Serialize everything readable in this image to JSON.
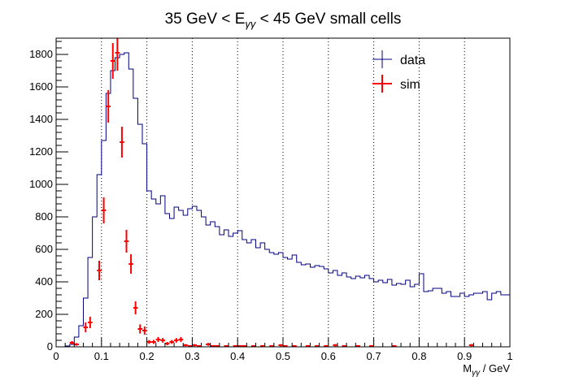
{
  "chart_data": {
    "type": "histogram",
    "title": {
      "prefix": "35 GeV < E",
      "sub": "γγ",
      "suffix": " < 45 GeV small cells"
    },
    "xlabel": {
      "main": "M",
      "sub": "γγ",
      "suffix": " / GeV"
    },
    "ylabel": "",
    "xlim": [
      0,
      1
    ],
    "ylim": [
      0,
      1900
    ],
    "x_ticks": [
      0,
      0.1,
      0.2,
      0.3,
      0.4,
      0.5,
      0.6,
      0.7,
      0.8,
      0.9,
      1
    ],
    "x_tick_labels": [
      "0",
      "0.1",
      "0.2",
      "0.3",
      "0.4",
      "0.5",
      "0.6",
      "0.7",
      "0.8",
      "0.9",
      "1"
    ],
    "y_ticks": [
      0,
      200,
      400,
      600,
      800,
      1000,
      1200,
      1400,
      1600,
      1800
    ],
    "y_tick_labels": [
      "0",
      "200",
      "400",
      "600",
      "800",
      "1000",
      "1200",
      "1400",
      "1600",
      "1800"
    ],
    "vertical_grid": true,
    "horizontal_grid": false,
    "legend_position": "top-right",
    "legend": [
      {
        "label": "data",
        "color": "#000080",
        "style": "line"
      },
      {
        "label": "sim",
        "color": "#ff0000",
        "style": "cross"
      }
    ],
    "series": [
      {
        "name": "data",
        "style": "step",
        "color": "#000080",
        "bin_edges": [
          0,
          0.01,
          0.02,
          0.03,
          0.04,
          0.05,
          0.06,
          0.07,
          0.08,
          0.09,
          0.1,
          0.11,
          0.12,
          0.13,
          0.14,
          0.15,
          0.16,
          0.17,
          0.18,
          0.19,
          0.2,
          0.21,
          0.22,
          0.23,
          0.24,
          0.25,
          0.26,
          0.27,
          0.28,
          0.29,
          0.3,
          0.31,
          0.32,
          0.33,
          0.34,
          0.35,
          0.36,
          0.37,
          0.38,
          0.39,
          0.4,
          0.41,
          0.42,
          0.43,
          0.44,
          0.45,
          0.46,
          0.47,
          0.48,
          0.49,
          0.5,
          0.51,
          0.52,
          0.53,
          0.54,
          0.55,
          0.56,
          0.57,
          0.58,
          0.59,
          0.6,
          0.61,
          0.62,
          0.63,
          0.64,
          0.65,
          0.66,
          0.67,
          0.68,
          0.69,
          0.7,
          0.71,
          0.72,
          0.73,
          0.74,
          0.75,
          0.76,
          0.77,
          0.78,
          0.79,
          0.8,
          0.81,
          0.82,
          0.83,
          0.84,
          0.85,
          0.86,
          0.87,
          0.88,
          0.89,
          0.9,
          0.91,
          0.92,
          0.93,
          0.94,
          0.95,
          0.96,
          0.97,
          0.98,
          0.99,
          1.0
        ],
        "values": [
          0,
          0,
          5,
          15,
          60,
          130,
          300,
          550,
          800,
          1060,
          1270,
          1560,
          1700,
          1780,
          1800,
          1810,
          1710,
          1530,
          1370,
          1250,
          960,
          910,
          880,
          930,
          820,
          790,
          860,
          840,
          810,
          850,
          865,
          840,
          800,
          750,
          770,
          740,
          690,
          720,
          680,
          700,
          715,
          660,
          640,
          660,
          610,
          640,
          600,
          580,
          570,
          580,
          550,
          540,
          565,
          520,
          505,
          510,
          490,
          500,
          495,
          480,
          455,
          470,
          440,
          455,
          430,
          420,
          435,
          425,
          440,
          420,
          400,
          410,
          395,
          415,
          380,
          390,
          385,
          410,
          370,
          385,
          450,
          340,
          345,
          360,
          360,
          330,
          340,
          310,
          310,
          330,
          310,
          320,
          330,
          330,
          340,
          290,
          330,
          340,
          320,
          320
        ]
      },
      {
        "name": "sim",
        "style": "errorbar",
        "color": "#ff0000",
        "x": [
          0.035,
          0.045,
          0.065,
          0.075,
          0.095,
          0.105,
          0.115,
          0.125,
          0.135,
          0.145,
          0.155,
          0.165,
          0.175,
          0.185,
          0.195,
          0.205,
          0.215,
          0.225,
          0.235,
          0.245,
          0.255,
          0.265,
          0.275,
          0.285,
          0.295,
          0.305,
          0.315,
          0.335,
          0.345,
          0.355,
          0.375,
          0.395,
          0.405,
          0.415,
          0.435,
          0.455,
          0.475,
          0.495,
          0.505,
          0.525,
          0.555,
          0.575,
          0.595,
          0.615,
          0.635,
          0.665,
          0.695,
          0.745,
          0.915
        ],
        "y": [
          25,
          15,
          120,
          150,
          470,
          840,
          1480,
          1760,
          1810,
          1260,
          650,
          510,
          240,
          110,
          100,
          30,
          30,
          45,
          40,
          20,
          30,
          40,
          45,
          10,
          5,
          10,
          5,
          15,
          5,
          5,
          5,
          5,
          5,
          5,
          5,
          5,
          5,
          10,
          5,
          5,
          5,
          5,
          5,
          10,
          5,
          5,
          5,
          5,
          10
        ],
        "yerr": [
          10,
          8,
          30,
          35,
          60,
          80,
          100,
          110,
          110,
          95,
          70,
          60,
          40,
          28,
          25,
          12,
          12,
          15,
          14,
          10,
          12,
          14,
          15,
          7,
          5,
          7,
          5,
          9,
          5,
          5,
          5,
          5,
          5,
          5,
          5,
          5,
          5,
          7,
          5,
          5,
          5,
          5,
          5,
          7,
          5,
          5,
          5,
          5,
          7
        ]
      }
    ]
  }
}
